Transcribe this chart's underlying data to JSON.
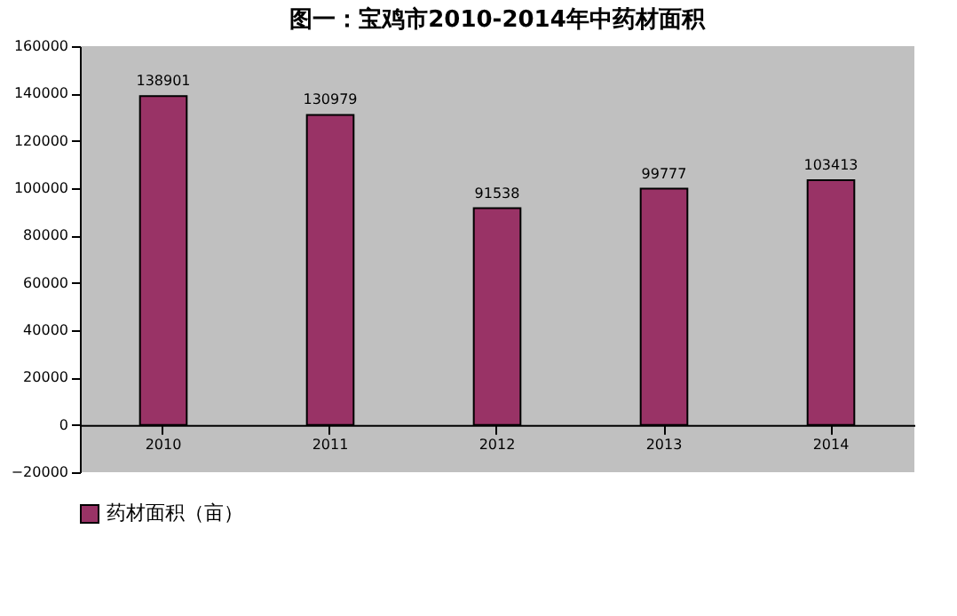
{
  "chart_data": {
    "type": "bar",
    "title": "图一：宝鸡市2010-2014年中药材面积",
    "categories": [
      "2010",
      "2011",
      "2012",
      "2013",
      "2014"
    ],
    "series": [
      {
        "name": "药材面积（亩）",
        "color": "#993366",
        "values": [
          138901,
          130979,
          91538,
          99777,
          103413
        ]
      }
    ],
    "ylim": [
      -20000,
      160000
    ],
    "yticks": [
      -20000,
      0,
      20000,
      40000,
      60000,
      80000,
      100000,
      120000,
      140000,
      160000
    ],
    "data_labels": true,
    "grid": false,
    "legend": "bottom"
  }
}
